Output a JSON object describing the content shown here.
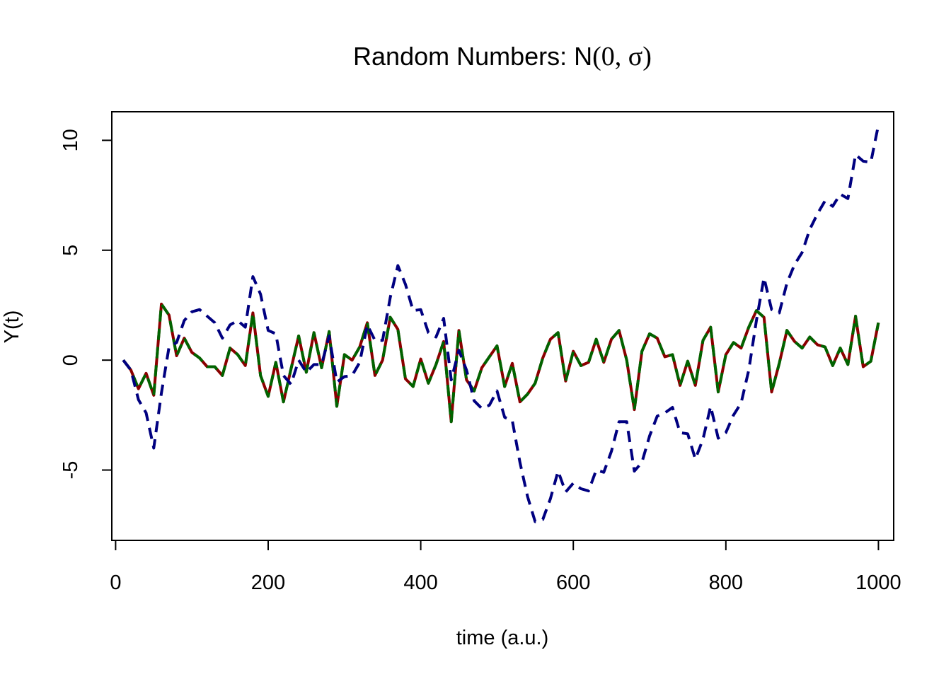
{
  "chart_data": {
    "type": "line",
    "title_text": "Random Numbers: N",
    "title_math": "(0, σ)",
    "xlabel": "time (a.u.)",
    "ylabel": "Y(t)",
    "xlim": [
      -5,
      1020
    ],
    "ylim": [
      -8.2,
      11.3
    ],
    "xticks": [
      0,
      200,
      400,
      600,
      800,
      1000
    ],
    "xtick_labels": [
      "0",
      "200",
      "400",
      "600",
      "800",
      "1000"
    ],
    "yticks": [
      -5,
      0,
      5,
      10
    ],
    "ytick_labels": [
      "-5",
      "0",
      "5",
      "10"
    ],
    "grid": false,
    "legend": "none",
    "x": [
      10,
      20,
      30,
      40,
      50,
      60,
      70,
      80,
      90,
      100,
      110,
      120,
      130,
      140,
      150,
      160,
      170,
      180,
      190,
      200,
      210,
      220,
      230,
      240,
      250,
      260,
      270,
      280,
      290,
      300,
      310,
      320,
      330,
      340,
      350,
      360,
      370,
      380,
      390,
      400,
      410,
      420,
      430,
      440,
      450,
      460,
      470,
      480,
      490,
      500,
      510,
      520,
      530,
      540,
      550,
      560,
      570,
      580,
      590,
      600,
      610,
      620,
      630,
      640,
      650,
      660,
      670,
      680,
      690,
      700,
      710,
      720,
      730,
      740,
      750,
      760,
      770,
      780,
      790,
      800,
      810,
      820,
      830,
      840,
      850,
      860,
      870,
      880,
      890,
      900,
      910,
      920,
      930,
      940,
      950,
      960,
      970,
      980,
      990,
      1000
    ],
    "series": [
      {
        "color": "#8b0000",
        "style": "solid",
        "values": [
          0,
          -0.45,
          -1.3,
          -0.6,
          -1.6,
          2.55,
          2.05,
          0.2,
          1.0,
          0.35,
          0.1,
          -0.3,
          -0.3,
          -0.7,
          0.55,
          0.25,
          -0.25,
          2.15,
          -0.7,
          -1.65,
          -0.1,
          -1.9,
          -0.4,
          1.1,
          -0.55,
          1.25,
          -0.35,
          1.3,
          -2.1,
          0.25,
          0.0,
          0.6,
          1.7,
          -0.7,
          0.0,
          1.95,
          1.4,
          -0.85,
          -1.2,
          0.05,
          -1.05,
          -0.2,
          0.85,
          -2.8,
          1.35,
          -0.9,
          -1.4,
          -0.35,
          0.15,
          0.65,
          -1.2,
          -0.15,
          -1.9,
          -1.55,
          -1.05,
          0.1,
          0.95,
          1.25,
          -0.95,
          0.4,
          -0.25,
          -0.1,
          0.95,
          -0.1,
          0.95,
          1.35,
          0.0,
          -2.25,
          0.4,
          1.2,
          1.0,
          0.15,
          0.25,
          -1.15,
          -0.05,
          -1.15,
          0.9,
          1.5,
          -1.45,
          0.25,
          0.8,
          0.55,
          1.5,
          2.25,
          1.95,
          -1.45,
          -0.15,
          1.35,
          0.85,
          0.55,
          1.05,
          0.7,
          0.6,
          -0.25,
          0.55,
          -0.2,
          2.0,
          -0.3,
          -0.05,
          1.7
        ]
      },
      {
        "color": "#006400",
        "style": "dashed",
        "values": [
          0,
          -0.45,
          -1.3,
          -0.6,
          -1.6,
          2.55,
          2.05,
          0.2,
          1.0,
          0.35,
          0.1,
          -0.3,
          -0.3,
          -0.7,
          0.55,
          0.25,
          -0.25,
          2.15,
          -0.7,
          -1.65,
          -0.1,
          -1.9,
          -0.4,
          1.1,
          -0.55,
          1.25,
          -0.35,
          1.3,
          -2.1,
          0.25,
          0.0,
          0.6,
          1.7,
          -0.7,
          0.0,
          1.95,
          1.4,
          -0.85,
          -1.2,
          0.05,
          -1.05,
          -0.2,
          0.85,
          -2.8,
          1.35,
          -0.9,
          -1.4,
          -0.35,
          0.15,
          0.65,
          -1.2,
          -0.15,
          -1.9,
          -1.55,
          -1.05,
          0.1,
          0.95,
          1.25,
          -0.95,
          0.4,
          -0.25,
          -0.1,
          0.95,
          -0.1,
          0.95,
          1.35,
          0.0,
          -2.25,
          0.4,
          1.2,
          1.0,
          0.15,
          0.25,
          -1.15,
          -0.05,
          -1.15,
          0.9,
          1.5,
          -1.45,
          0.25,
          0.8,
          0.55,
          1.5,
          2.25,
          1.95,
          -1.45,
          -0.15,
          1.35,
          0.85,
          0.55,
          1.05,
          0.7,
          0.6,
          -0.25,
          0.55,
          -0.2,
          2.0,
          -0.3,
          -0.05,
          1.7
        ]
      },
      {
        "color": "#000080",
        "style": "dashed",
        "values": [
          0,
          -0.45,
          -1.8,
          -2.4,
          -4.0,
          -1.5,
          0.6,
          0.8,
          1.8,
          2.2,
          2.3,
          2.0,
          1.7,
          1.0,
          1.6,
          1.8,
          1.5,
          3.8,
          3.0,
          1.35,
          1.2,
          -0.7,
          -1.1,
          0.0,
          -0.55,
          -0.2,
          -0.2,
          1.1,
          -1.0,
          -0.75,
          -0.7,
          -0.1,
          1.6,
          0.9,
          0.9,
          2.85,
          4.3,
          3.45,
          2.25,
          2.3,
          1.25,
          1.05,
          1.9,
          -0.9,
          0.45,
          -0.45,
          -1.85,
          -2.2,
          -2.05,
          -1.4,
          -2.6,
          -2.75,
          -4.65,
          -6.2,
          -7.35,
          -7.25,
          -6.3,
          -5.05,
          -6.0,
          -5.6,
          -5.85,
          -5.95,
          -5.0,
          -5.1,
          -4.15,
          -2.8,
          -2.8,
          -5.05,
          -4.65,
          -3.45,
          -2.55,
          -2.4,
          -2.15,
          -3.3,
          -3.35,
          -4.5,
          -3.6,
          -2.1,
          -3.55,
          -3.3,
          -2.5,
          -1.95,
          -0.45,
          1.8,
          3.75,
          2.3,
          2.15,
          3.5,
          4.35,
          4.9,
          5.95,
          6.65,
          7.25,
          7.0,
          7.55,
          7.35,
          9.35,
          9.05,
          9.0,
          10.7
        ]
      }
    ]
  }
}
